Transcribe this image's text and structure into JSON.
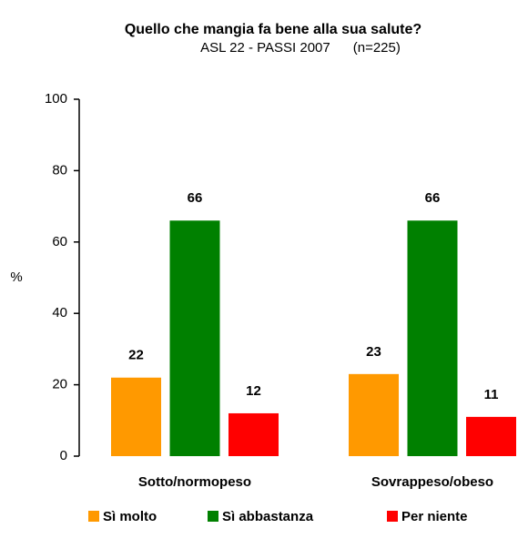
{
  "chart_data": {
    "type": "bar",
    "title": "Quello che mangia fa bene alla sua salute?",
    "subtitle": "ASL 22 - PASSI 2007      (n=225)",
    "y_label": "%",
    "categories": [
      "Sotto/normopeso",
      "Sovrappeso/obeso"
    ],
    "series": [
      {
        "name": "Sì molto",
        "color": "#ff9900",
        "values": [
          22,
          23
        ]
      },
      {
        "name": "Sì abbastanza",
        "color": "#008000",
        "values": [
          66,
          66
        ]
      },
      {
        "name": "Per niente",
        "color": "#ff0000",
        "values": [
          12,
          11
        ]
      }
    ],
    "ylim": [
      0,
      100
    ],
    "yticks": [
      0,
      20,
      40,
      60,
      80,
      100
    ],
    "legend": "bottom"
  }
}
